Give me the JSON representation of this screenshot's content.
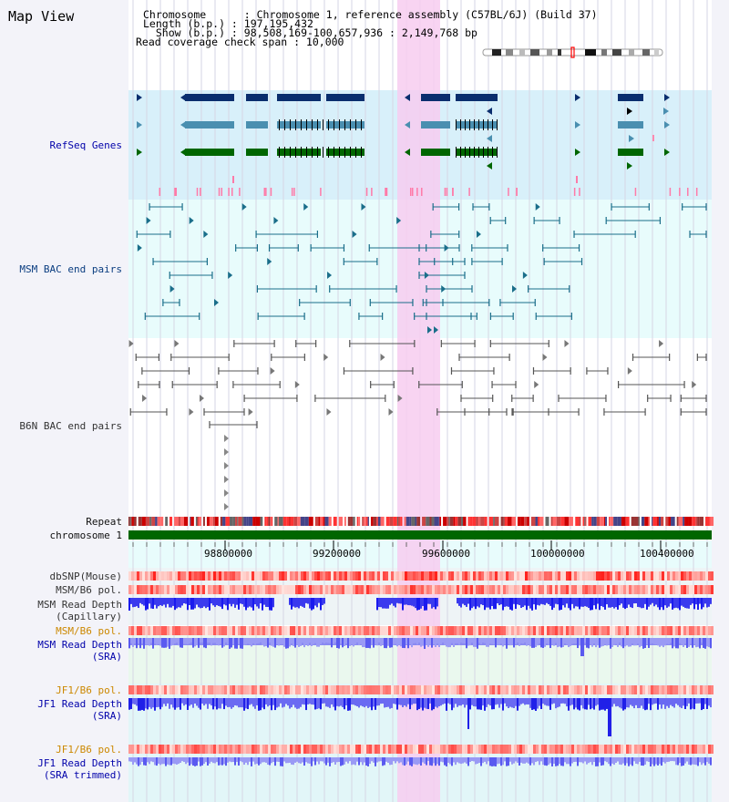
{
  "header": {
    "title": "Map View",
    "chromosome_line": "Chromosome      : Chromosome 1, reference assembly (C57BL/6J) (Build 37)",
    "length_line": "Length (b.p.) : 197,195,432",
    "show_line": "  Show (b.p.) : 98,508,169-100,657,936 : 2,149,768 bp",
    "coverage_line": "Read coverage check span : 10,000"
  },
  "tracks": {
    "refseq": "RefSeq Genes",
    "msm_bac": "MSM BAC end pairs",
    "b6n_bac": "B6N BAC end pairs",
    "repeat": "Repeat",
    "chromosome": "chromosome 1",
    "dbsnp": "dbSNP(Mouse)",
    "msm_b6_pol_1": "MSM/B6 pol.",
    "msm_read_depth_cap": "MSM Read Depth\n(Capillary)",
    "msm_b6_pol_2": "MSM/B6 pol.",
    "msm_read_depth_sra": "MSM Read Depth\n(SRA)",
    "jf1_b6_pol_1": "JF1/B6 pol.",
    "jf1_read_depth_sra": "JF1 Read Depth\n(SRA)",
    "jf1_b6_pol_2": "JF1/B6 pol.",
    "jf1_read_depth_trim": "JF1 Read Depth\n(SRA trimmed)"
  },
  "axis": {
    "ticks": [
      "98800000",
      "99200000",
      "99600000",
      "100000000",
      "100400000"
    ]
  },
  "colors": {
    "highlight": "#f7cdf0",
    "refseq_bg": "#d8f0fa",
    "msm_bg": "#e8fcfc",
    "b6n_bg": "#ffffff",
    "depth_bg": "#eaf8ee",
    "jf1_bg": "#e2f6f8",
    "gene_dark": "#0a2e6e",
    "gene_mid": "#4a8fb0",
    "gene_green": "#006600",
    "depth_blue": "#1a1aee",
    "depth_light": "#7b7bf5"
  }
}
